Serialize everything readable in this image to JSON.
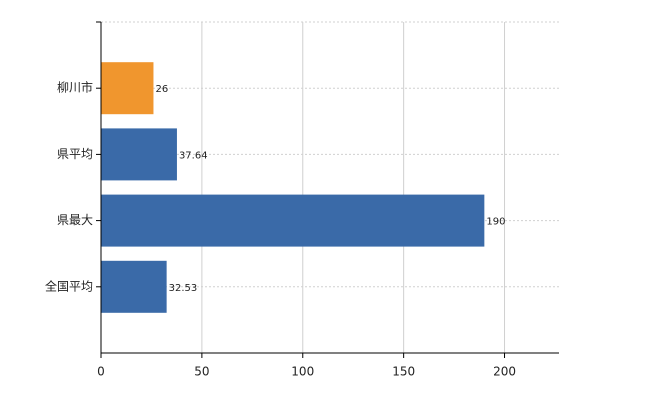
{
  "chart_data": {
    "type": "hbar",
    "categories": [
      "柳川市",
      "県平均",
      "県最大",
      "全国平均"
    ],
    "values": [
      26,
      37.64,
      190,
      32.53
    ],
    "colors": [
      "#f0962e",
      "#3a6aa8",
      "#3a6aa8",
      "#3a6aa8"
    ],
    "xlim": [
      0,
      227
    ],
    "xticks": [
      0,
      50,
      100,
      150,
      200
    ],
    "grid": true
  }
}
